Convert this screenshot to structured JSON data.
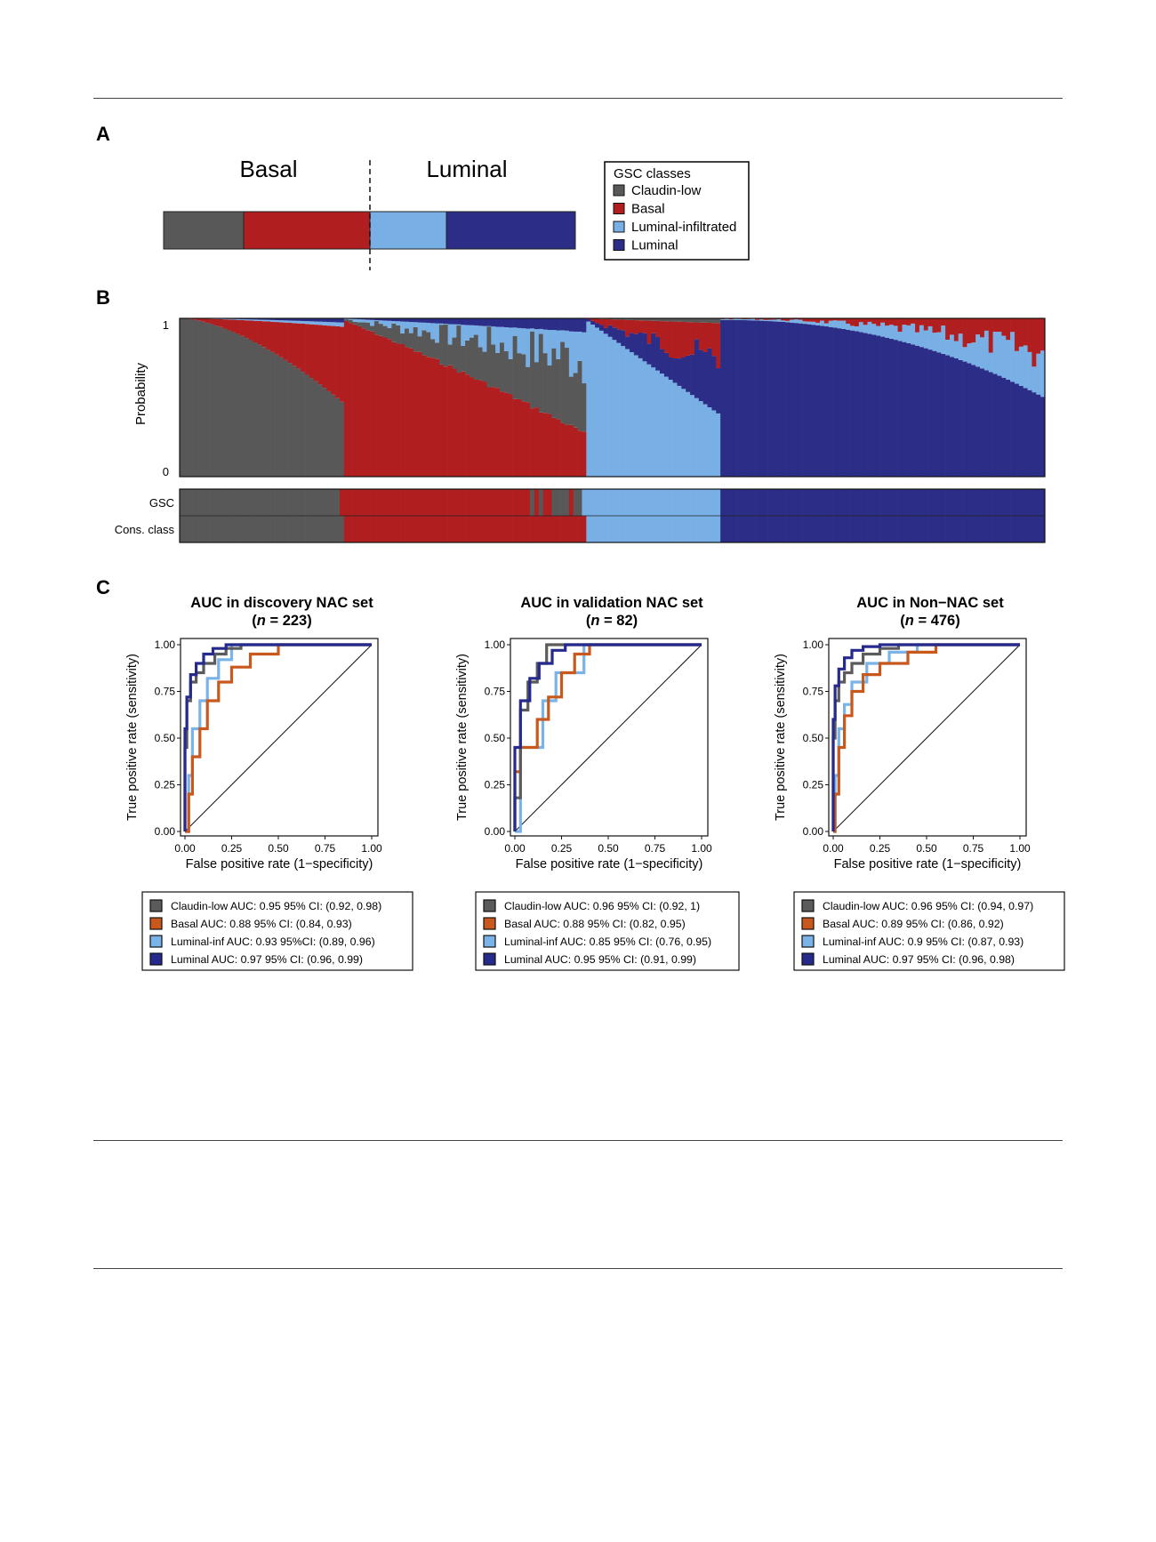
{
  "panels": {
    "a": "A",
    "b": "B",
    "c": "C"
  },
  "colors": {
    "claudin": "#585858",
    "basal_a": "#b01e20",
    "luminf_a": "#78b0e6",
    "luminal_a": "#2b2d86",
    "roc_claudin": "#5b5b5b",
    "roc_basal": "#c8581c",
    "roc_luminf": "#7ab3e8",
    "roc_luminal": "#252a8c"
  },
  "panel_a": {
    "basal_label": "Basal",
    "luminal_label": "Luminal",
    "legend_title": "GSC classes",
    "legend": [
      "Claudin-low",
      "Basal",
      "Luminal-infiltrated",
      "Luminal"
    ]
  },
  "panel_b": {
    "ylabel": "Probability",
    "ytick_top": "1",
    "ytick_bottom": "0",
    "row_labels": [
      "GSC",
      "Cons. class"
    ]
  },
  "chart_data": [
    {
      "type": "bar",
      "name": "Panel B class-probability stacked bars",
      "ylim": [
        0,
        1
      ],
      "segments_in_data_units": {
        "description_only": "samples ordered by consensus class; stacked GSC class probabilities per sample",
        "groups_fraction_of_samples": {
          "Claudin-low": 0.19,
          "Basal": 0.28,
          "Luminal-infiltrated": 0.155,
          "Luminal": 0.375
        }
      },
      "series": [
        {
          "name": "Claudin-low"
        },
        {
          "name": "Basal"
        },
        {
          "name": "Luminal-infiltrated"
        },
        {
          "name": "Luminal"
        }
      ]
    },
    {
      "type": "line",
      "title": "AUC in discovery NAC set",
      "subtitle_n": "223",
      "xlabel": "False positive rate (1−specificity)",
      "ylabel": "True positive rate (sensitivity)",
      "xlim": [
        0,
        1
      ],
      "ylim": [
        0,
        1
      ],
      "ticks": [
        "0.00",
        "0.25",
        "0.50",
        "0.75",
        "1.00"
      ],
      "legend": [
        "Claudin-low AUC: 0.95 95% CI: (0.92, 0.98)",
        "Basal AUC: 0.88  95% CI: (0.84, 0.93)",
        "Luminal-inf AUC: 0.93  95%CI: (0.89, 0.96)",
        "Luminal AUC: 0.97  95% CI: (0.96, 0.99)"
      ],
      "series": [
        {
          "name": "Claudin-low",
          "x": [
            0,
            0,
            0.01,
            0.01,
            0.03,
            0.03,
            0.06,
            0.06,
            0.1,
            0.1,
            0.16,
            0.16,
            0.22,
            0.22,
            0.3,
            0.3,
            1
          ],
          "y": [
            0,
            0.45,
            0.45,
            0.7,
            0.7,
            0.8,
            0.8,
            0.85,
            0.85,
            0.9,
            0.9,
            0.95,
            0.95,
            0.98,
            0.98,
            1,
            1
          ]
        },
        {
          "name": "Basal",
          "x": [
            0,
            0.02,
            0.02,
            0.04,
            0.04,
            0.08,
            0.08,
            0.12,
            0.12,
            0.18,
            0.18,
            0.25,
            0.25,
            0.35,
            0.35,
            0.5,
            0.5,
            1
          ],
          "y": [
            0,
            0,
            0.2,
            0.2,
            0.4,
            0.4,
            0.55,
            0.55,
            0.7,
            0.7,
            0.8,
            0.8,
            0.88,
            0.88,
            0.95,
            0.95,
            1,
            1
          ]
        },
        {
          "name": "Luminal-inf",
          "x": [
            0,
            0.02,
            0.02,
            0.04,
            0.04,
            0.08,
            0.08,
            0.12,
            0.12,
            0.18,
            0.18,
            0.25,
            0.25,
            1
          ],
          "y": [
            0,
            0,
            0.3,
            0.3,
            0.55,
            0.55,
            0.7,
            0.7,
            0.82,
            0.82,
            0.92,
            0.92,
            1,
            1
          ]
        },
        {
          "name": "Luminal",
          "x": [
            0,
            0,
            0.01,
            0.01,
            0.03,
            0.03,
            0.06,
            0.06,
            0.1,
            0.1,
            0.15,
            0.15,
            0.22,
            0.22,
            1
          ],
          "y": [
            0,
            0.55,
            0.55,
            0.72,
            0.72,
            0.84,
            0.84,
            0.9,
            0.9,
            0.95,
            0.95,
            0.98,
            0.98,
            1,
            1
          ]
        }
      ]
    },
    {
      "type": "line",
      "title": "AUC in validation NAC set",
      "subtitle_n": "82",
      "xlabel": "False positive rate (1−specificity)",
      "ylabel": "True positive rate (sensitivity)",
      "xlim": [
        0,
        1
      ],
      "ylim": [
        0,
        1
      ],
      "ticks": [
        "0.00",
        "0.25",
        "0.50",
        "0.75",
        "1.00"
      ],
      "legend": [
        "Claudin-low AUC: 0.96  95% CI: (0.92, 1)",
        "Basal AUC: 0.88  95% CI: (0.82, 0.95)",
        "Luminal-inf AUC: 0.85  95% CI: (0.76, 0.95)",
        "Luminal AUC: 0.95  95% CI: (0.91, 0.99)"
      ],
      "series": [
        {
          "name": "Claudin-low",
          "x": [
            0,
            0,
            0.03,
            0.03,
            0.07,
            0.07,
            0.12,
            0.12,
            0.17,
            0.17,
            1
          ],
          "y": [
            0,
            0.18,
            0.18,
            0.65,
            0.65,
            0.8,
            0.8,
            0.9,
            0.9,
            1,
            1
          ]
        },
        {
          "name": "Basal",
          "x": [
            0,
            0,
            0.03,
            0.03,
            0.12,
            0.12,
            0.18,
            0.18,
            0.25,
            0.25,
            0.32,
            0.32,
            0.4,
            0.4,
            1
          ],
          "y": [
            0,
            0.32,
            0.32,
            0.45,
            0.45,
            0.6,
            0.6,
            0.72,
            0.72,
            0.85,
            0.85,
            0.95,
            0.95,
            1,
            1
          ]
        },
        {
          "name": "Luminal-inf",
          "x": [
            0,
            0.03,
            0.03,
            0.05,
            0.05,
            0.15,
            0.15,
            0.22,
            0.22,
            0.37,
            0.37,
            1
          ],
          "y": [
            0,
            0,
            0.45,
            0.45,
            0.45,
            0.45,
            0.7,
            0.7,
            0.85,
            0.85,
            1,
            1
          ]
        },
        {
          "name": "Luminal",
          "x": [
            0,
            0,
            0.03,
            0.03,
            0.08,
            0.08,
            0.13,
            0.13,
            0.2,
            0.2,
            0.27,
            0.27,
            1
          ],
          "y": [
            0,
            0.45,
            0.45,
            0.7,
            0.7,
            0.82,
            0.82,
            0.9,
            0.9,
            0.97,
            0.97,
            1,
            1
          ]
        }
      ]
    },
    {
      "type": "line",
      "title": "AUC in Non−NAC set",
      "subtitle_n": "476",
      "xlabel": "False positive rate (1−specificity)",
      "ylabel": "True positive rate (sensitivity)",
      "xlim": [
        0,
        1
      ],
      "ylim": [
        0,
        1
      ],
      "ticks": [
        "0.00",
        "0.25",
        "0.50",
        "0.75",
        "1.00"
      ],
      "legend": [
        "Claudin-low AUC: 0.96  95% CI: (0.94, 0.97)",
        "Basal AUC: 0.89  95% CI: (0.86, 0.92)",
        "Luminal-inf AUC: 0.9  95% CI: (0.87, 0.93)",
        "Luminal AUC: 0.97  95% CI: (0.96, 0.98)"
      ],
      "series": [
        {
          "name": "Claudin-low",
          "x": [
            0,
            0,
            0.01,
            0.01,
            0.03,
            0.03,
            0.06,
            0.06,
            0.1,
            0.1,
            0.16,
            0.16,
            0.25,
            0.25,
            0.35,
            0.35,
            1
          ],
          "y": [
            0,
            0.5,
            0.5,
            0.7,
            0.7,
            0.8,
            0.8,
            0.85,
            0.85,
            0.9,
            0.9,
            0.95,
            0.95,
            0.98,
            0.98,
            1,
            1
          ]
        },
        {
          "name": "Basal",
          "x": [
            0,
            0.01,
            0.01,
            0.03,
            0.03,
            0.06,
            0.06,
            0.1,
            0.1,
            0.16,
            0.16,
            0.25,
            0.25,
            0.4,
            0.4,
            0.55,
            0.55,
            1
          ],
          "y": [
            0,
            0,
            0.2,
            0.2,
            0.45,
            0.45,
            0.62,
            0.62,
            0.75,
            0.75,
            0.84,
            0.84,
            0.9,
            0.9,
            0.96,
            0.96,
            1,
            1
          ]
        },
        {
          "name": "Luminal-inf",
          "x": [
            0,
            0.01,
            0.01,
            0.03,
            0.03,
            0.06,
            0.06,
            0.1,
            0.1,
            0.18,
            0.18,
            0.3,
            0.3,
            0.45,
            0.45,
            1
          ],
          "y": [
            0,
            0,
            0.3,
            0.3,
            0.55,
            0.55,
            0.68,
            0.68,
            0.8,
            0.8,
            0.9,
            0.9,
            0.96,
            0.96,
            1,
            1
          ]
        },
        {
          "name": "Luminal",
          "x": [
            0,
            0,
            0.01,
            0.01,
            0.03,
            0.03,
            0.06,
            0.06,
            0.1,
            0.1,
            0.16,
            0.16,
            0.25,
            0.25,
            1
          ],
          "y": [
            0,
            0.6,
            0.6,
            0.78,
            0.78,
            0.87,
            0.87,
            0.93,
            0.93,
            0.97,
            0.97,
            0.99,
            0.99,
            1,
            1
          ]
        }
      ]
    }
  ]
}
